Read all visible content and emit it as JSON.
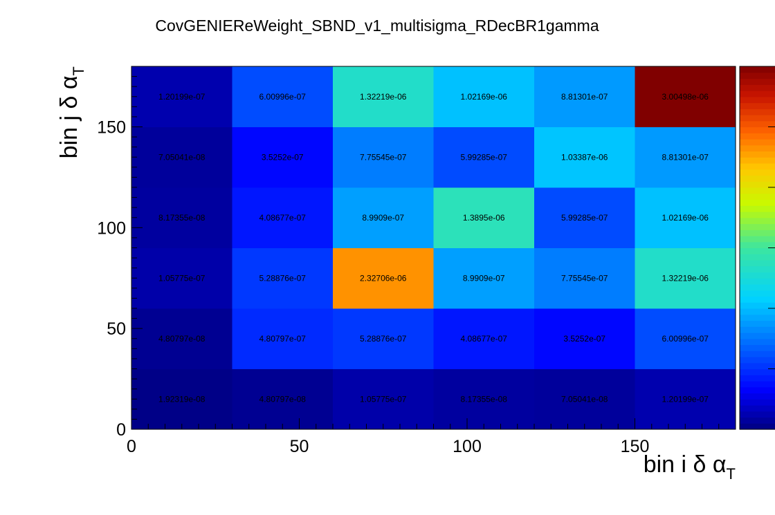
{
  "chart_data": {
    "type": "heatmap",
    "title": "CovGENIEReWeight_SBND_v1_multisigma_RDecBR1gamma",
    "xlabel": "bin i δ α",
    "xlabel_sub": "T",
    "ylabel": "bin j δ α",
    "ylabel_sub": "T",
    "x_edges": [
      0,
      30,
      60,
      90,
      120,
      150,
      180
    ],
    "y_edges": [
      0,
      30,
      60,
      90,
      120,
      150,
      180
    ],
    "xlim": [
      0,
      180
    ],
    "ylim": [
      0,
      180
    ],
    "x_ticks": [
      0,
      50,
      100,
      150
    ],
    "y_ticks": [
      0,
      50,
      100,
      150
    ],
    "z_range": [
      0,
      3.00498e-06
    ],
    "colorscale": "rainbow",
    "grid": false,
    "colorbar": "right",
    "values": [
      [
        1.92319e-08,
        4.80797e-08,
        1.05775e-07,
        8.17355e-08,
        7.05041e-08,
        1.20199e-07
      ],
      [
        4.80797e-08,
        4.80797e-07,
        5.28876e-07,
        4.08677e-07,
        3.5252e-07,
        6.00996e-07
      ],
      [
        1.05775e-07,
        5.28876e-07,
        2.32706e-06,
        8.9909e-07,
        7.75545e-07,
        1.32219e-06
      ],
      [
        8.17355e-08,
        4.08677e-07,
        8.9909e-07,
        1.3895e-06,
        5.99285e-07,
        1.02169e-06
      ],
      [
        7.05041e-08,
        3.5252e-07,
        7.75545e-07,
        5.99285e-07,
        1.03387e-06,
        8.81301e-07
      ],
      [
        1.20199e-07,
        6.00996e-07,
        1.32219e-06,
        1.02169e-06,
        8.81301e-07,
        3.00498e-06
      ]
    ],
    "labels": [
      [
        "1.92319e-08",
        "4.80797e-08",
        "1.05775e-07",
        "8.17355e-08",
        "7.05041e-08",
        "1.20199e-07"
      ],
      [
        "4.80797e-08",
        "4.80797e-07",
        "5.28876e-07",
        "4.08677e-07",
        "3.5252e-07",
        "6.00996e-07"
      ],
      [
        "1.05775e-07",
        "5.28876e-07",
        "2.32706e-06",
        "8.9909e-07",
        "7.75545e-07",
        "1.32219e-06"
      ],
      [
        "8.17355e-08",
        "4.08677e-07",
        "8.9909e-07",
        "1.3895e-06",
        "5.99285e-07",
        "1.02169e-06"
      ],
      [
        "7.05041e-08",
        "3.5252e-07",
        "7.75545e-07",
        "5.99285e-07",
        "1.03387e-06",
        "8.81301e-07"
      ],
      [
        "1.20199e-07",
        "6.00996e-07",
        "1.32219e-06",
        "1.02169e-06",
        "8.81301e-07",
        "3.00498e-06"
      ]
    ]
  }
}
